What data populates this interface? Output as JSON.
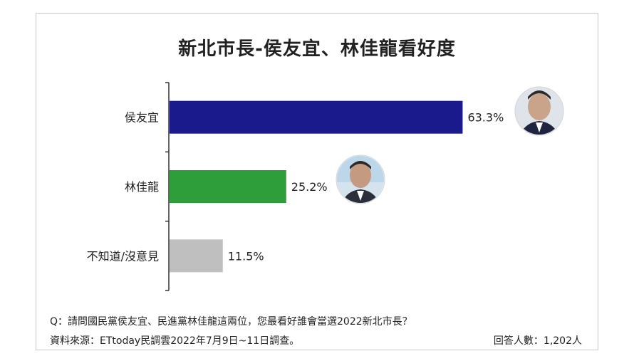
{
  "chart_data": {
    "type": "bar",
    "orientation": "horizontal",
    "title": "新北市長-侯友宜、林佳龍看好度",
    "categories": [
      "侯友宜",
      "林佳龍",
      "不知道/沒意見"
    ],
    "values": [
      63.3,
      25.2,
      11.5
    ],
    "value_labels": [
      "63.3%",
      "25.2%",
      "11.5%"
    ],
    "bar_colors": [
      "#1a1a8c",
      "#2e9e3a",
      "#bfbfbf"
    ],
    "xlim": [
      0,
      100
    ],
    "grid": false,
    "legend": "none",
    "photos": [
      "headshot-1",
      "headshot-2"
    ]
  },
  "footer": {
    "question": "Q：請問國民黨侯友宜、民進黨林佳龍這兩位，您最看好誰會當選2022新北市長？",
    "source": "資料來源：ETtoday民調雲2022年7月9日~11日調查。",
    "respondents": "回答人數：1,202人"
  }
}
